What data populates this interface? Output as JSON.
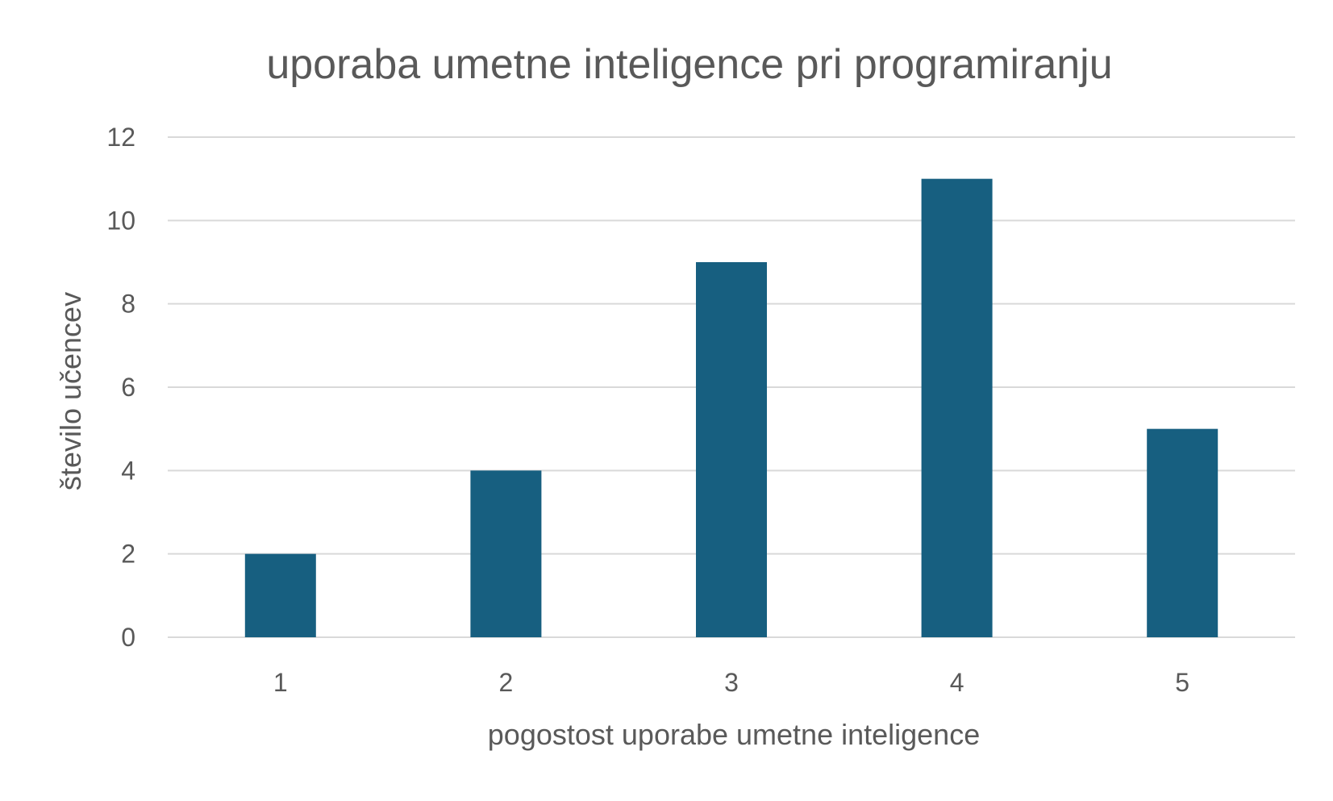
{
  "chart_data": {
    "type": "bar",
    "title": "uporaba umetne inteligence pri programiranju",
    "xlabel": "pogostost uporabe umetne inteligence",
    "ylabel": "število učencev",
    "categories": [
      "1",
      "2",
      "3",
      "4",
      "5"
    ],
    "values": [
      2,
      4,
      9,
      11,
      5
    ],
    "ylim": [
      0,
      12
    ],
    "yticks": [
      "0",
      "2",
      "4",
      "6",
      "8",
      "10",
      "12"
    ],
    "grid": true,
    "legend": "none",
    "bar_color": "#175f80"
  }
}
